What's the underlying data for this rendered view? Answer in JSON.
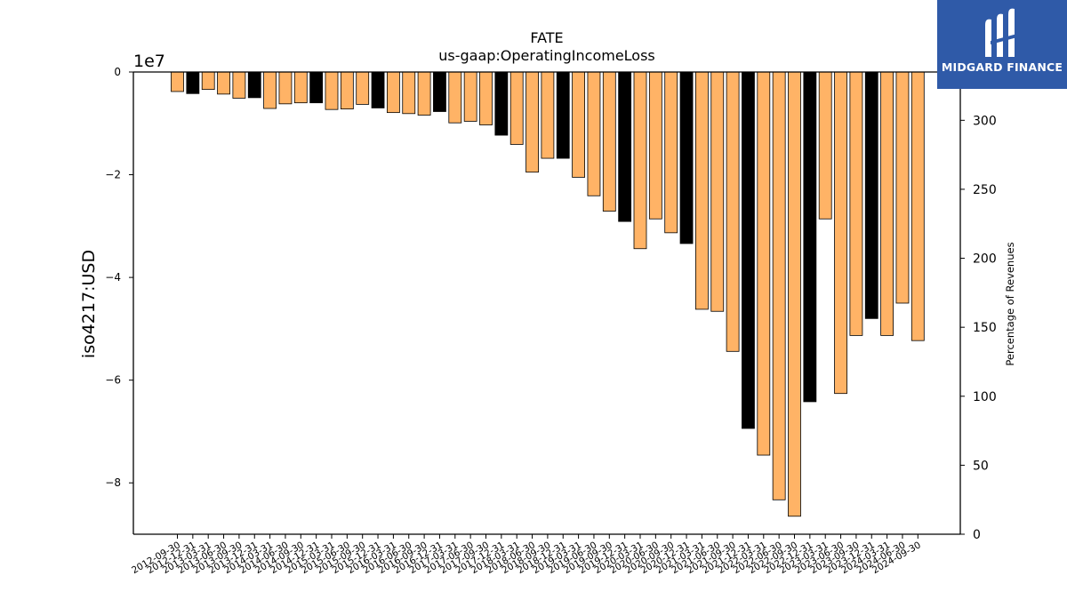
{
  "chart_data": {
    "type": "bar",
    "title": "FATE",
    "subtitle": "us-gaap:OperatingIncomeLoss",
    "ylabel": "iso4217:USD",
    "y2label": "Percentage of Revenues",
    "offset_text": "1e7",
    "ylim": [
      -90000000,
      0
    ],
    "y2lim": [
      0,
      335
    ],
    "yticks": [
      0,
      -20000000,
      -40000000,
      -60000000,
      -80000000
    ],
    "ytick_labels": [
      "0",
      "−2",
      "−4",
      "−6",
      "−8"
    ],
    "y2ticks": [
      0,
      50,
      100,
      150,
      200,
      250,
      300
    ],
    "y2tick_labels": [
      "0",
      "50",
      "100",
      "150",
      "200",
      "250",
      "300"
    ],
    "grid": false,
    "colors": {
      "quarter": "#ffb366",
      "fiscal_year": "#000000",
      "edge": "#000000"
    },
    "categories": [
      "2012-09-30",
      "2012-12-31",
      "2013-03-31",
      "2013-06-30",
      "2013-09-30",
      "2013-12-31",
      "2014-03-31",
      "2014-06-30",
      "2014-09-30",
      "2014-12-31",
      "2015-03-31",
      "2015-06-30",
      "2015-09-30",
      "2015-12-31",
      "2016-03-31",
      "2016-06-30",
      "2016-09-30",
      "2016-12-31",
      "2017-03-31",
      "2017-06-30",
      "2017-09-30",
      "2017-12-31",
      "2018-03-31",
      "2018-06-30",
      "2018-09-30",
      "2018-12-31",
      "2019-03-31",
      "2019-06-30",
      "2019-09-30",
      "2019-12-31",
      "2020-03-31",
      "2020-06-30",
      "2020-09-30",
      "2020-12-31",
      "2021-03-31",
      "2021-06-30",
      "2021-09-30",
      "2021-12-31",
      "2022-03-31",
      "2022-06-30",
      "2022-09-30",
      "2022-12-31",
      "2023-03-31",
      "2023-06-30",
      "2023-09-30",
      "2023-12-31",
      "2024-03-31",
      "2024-06-30",
      "2024-09-30"
    ],
    "values": [
      -3800000,
      -4200000,
      -3400000,
      -4300000,
      -5100000,
      -5000000,
      -7100000,
      -6200000,
      -6000000,
      -6000000,
      -7300000,
      -7200000,
      -6300000,
      -7000000,
      -7900000,
      -8100000,
      -8400000,
      -7700000,
      -9900000,
      -9600000,
      -10300000,
      -12300000,
      -14100000,
      -19500000,
      -16800000,
      -16800000,
      -20500000,
      -24100000,
      -27100000,
      -29100000,
      -34400000,
      -28600000,
      -31300000,
      -33400000,
      -46200000,
      -46600000,
      -54400000,
      -69400000,
      -74600000,
      -83300000,
      -86500000,
      -64200000,
      -28600000,
      -62600000,
      -51300000,
      -48000000,
      -51300000,
      -45000000,
      -52300000
    ],
    "fiscal_year_end": [
      false,
      true,
      false,
      false,
      false,
      true,
      false,
      false,
      false,
      true,
      false,
      false,
      false,
      true,
      false,
      false,
      false,
      true,
      false,
      false,
      false,
      true,
      false,
      false,
      false,
      true,
      false,
      false,
      false,
      true,
      false,
      false,
      false,
      true,
      false,
      false,
      false,
      true,
      false,
      false,
      false,
      true,
      false,
      false,
      false,
      true,
      false,
      false,
      false
    ]
  },
  "logo": {
    "name": "MIDGARD FINANCE",
    "color": "#2f5aa8"
  }
}
